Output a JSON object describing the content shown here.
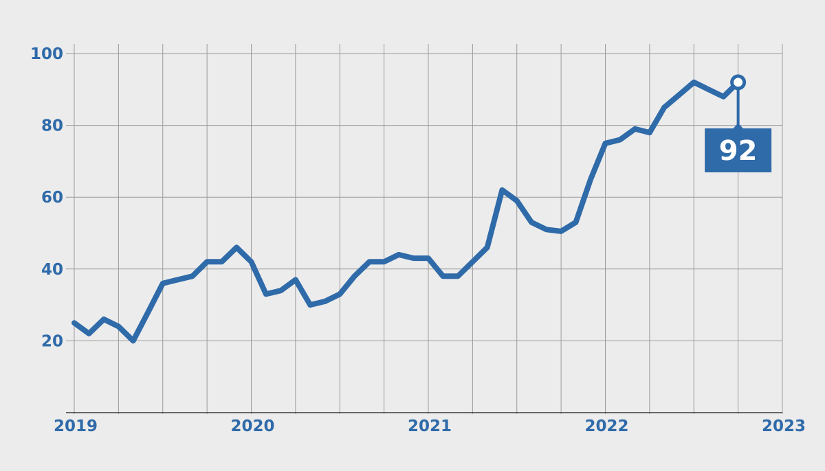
{
  "chart_data": {
    "type": "line",
    "title": "",
    "xlabel": "",
    "ylabel": "",
    "xlim": [
      2019.0,
      2023.0
    ],
    "ylim": [
      0,
      100
    ],
    "grid": true,
    "x_ticks": [
      {
        "value": 2019.0,
        "label": "2019"
      },
      {
        "value": 2020.0,
        "label": "2020"
      },
      {
        "value": 2021.0,
        "label": "2021"
      },
      {
        "value": 2022.0,
        "label": "2022"
      },
      {
        "value": 2023.0,
        "label": "2023"
      }
    ],
    "y_ticks": [
      {
        "value": 20,
        "label": "20"
      },
      {
        "value": 40,
        "label": "40"
      },
      {
        "value": 60,
        "label": "60"
      },
      {
        "value": 80,
        "label": "80"
      },
      {
        "value": 100,
        "label": "100"
      }
    ],
    "series": [
      {
        "color": "#2f6aa9",
        "x": [
          2019.0,
          2019.083,
          2019.167,
          2019.25,
          2019.333,
          2019.417,
          2019.5,
          2019.583,
          2019.667,
          2019.75,
          2019.833,
          2019.917,
          2020.0,
          2020.083,
          2020.167,
          2020.25,
          2020.333,
          2020.417,
          2020.5,
          2020.583,
          2020.667,
          2020.75,
          2020.833,
          2020.917,
          2021.0,
          2021.083,
          2021.167,
          2021.25,
          2021.333,
          2021.417,
          2021.5,
          2021.583,
          2021.667,
          2021.75,
          2021.833,
          2021.917,
          2022.0,
          2022.083,
          2022.167,
          2022.25,
          2022.333,
          2022.417,
          2022.5,
          2022.583,
          2022.667,
          2022.75
        ],
        "values": [
          25,
          22,
          26,
          24,
          20,
          28,
          36,
          37,
          38,
          42,
          42,
          46,
          42,
          33,
          34,
          37,
          30,
          31,
          33,
          38,
          42,
          42,
          44,
          43,
          43,
          38,
          38,
          42,
          46,
          62,
          59,
          53,
          51,
          50.5,
          53,
          65,
          75,
          76,
          79,
          78,
          85,
          88.5,
          92,
          90,
          88,
          92
        ]
      }
    ],
    "callout": {
      "label": "92",
      "x": 2022.75,
      "value": 92
    }
  }
}
